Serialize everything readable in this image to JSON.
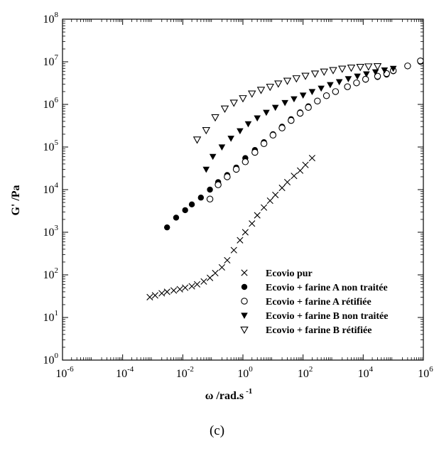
{
  "panel_label": "(c)",
  "chart_data": {
    "type": "scatter",
    "title": "",
    "xlabel": "ω /rad.s",
    "xlabel_sup": "-1",
    "ylabel": "G' /Pa",
    "xscale": "log",
    "yscale": "log",
    "xlim": [
      1e-06,
      1000000.0
    ],
    "ylim": [
      1,
      100000000.0
    ],
    "x_ticks": [
      {
        "base": "10",
        "exp": "-6",
        "value": 1e-06
      },
      {
        "base": "10",
        "exp": "-4",
        "value": 0.0001
      },
      {
        "base": "10",
        "exp": "-2",
        "value": 0.01
      },
      {
        "base": "10",
        "exp": "0",
        "value": 1
      },
      {
        "base": "10",
        "exp": "2",
        "value": 100.0
      },
      {
        "base": "10",
        "exp": "4",
        "value": 10000.0
      },
      {
        "base": "10",
        "exp": "6",
        "value": 1000000.0
      }
    ],
    "y_ticks": [
      {
        "base": "10",
        "exp": "0",
        "value": 1
      },
      {
        "base": "10",
        "exp": "1",
        "value": 10.0
      },
      {
        "base": "10",
        "exp": "2",
        "value": 100.0
      },
      {
        "base": "10",
        "exp": "3",
        "value": 1000.0
      },
      {
        "base": "10",
        "exp": "4",
        "value": 10000.0
      },
      {
        "base": "10",
        "exp": "5",
        "value": 100000.0
      },
      {
        "base": "10",
        "exp": "6",
        "value": 1000000.0
      },
      {
        "base": "10",
        "exp": "7",
        "value": 10000000.0
      },
      {
        "base": "10",
        "exp": "8",
        "value": 100000000.0
      }
    ],
    "grid": false,
    "legend_position": "bottom-right",
    "series": [
      {
        "name": "Ecovio pur",
        "marker": "x",
        "x": [
          0.0008,
          0.0012,
          0.002,
          0.003,
          0.005,
          0.008,
          0.012,
          0.02,
          0.03,
          0.05,
          0.08,
          0.12,
          0.2,
          0.3,
          0.5,
          0.8,
          1.2,
          2,
          3,
          5,
          8,
          12,
          20,
          30,
          50,
          80,
          120,
          200
        ],
        "y": [
          30,
          33,
          37,
          40,
          43,
          46,
          50,
          54,
          60,
          70,
          85,
          110,
          150,
          220,
          380,
          650,
          1000,
          1600,
          2500,
          3800,
          5500,
          7500,
          11000,
          15000,
          21000,
          28000,
          38000,
          55000
        ]
      },
      {
        "name": "Ecovio + farine A non traitée",
        "marker": "filled-circle",
        "x": [
          0.003,
          0.006,
          0.012,
          0.02,
          0.04,
          0.08,
          0.15,
          0.3,
          0.6,
          1.2,
          2.5,
          5,
          10,
          20,
          40,
          80,
          150,
          300,
          600,
          1200,
          3000,
          6000,
          12000,
          30000,
          60000,
          100000,
          300000,
          800000
        ],
        "y": [
          1300,
          2200,
          3300,
          4500,
          6500,
          10000,
          15000,
          22000,
          33000,
          55000,
          85000,
          130000,
          200000,
          300000,
          450000,
          650000,
          900000,
          1200000,
          1600000,
          2000000,
          2600000,
          3200000,
          3800000,
          4400000,
          5000000,
          6000000,
          8000000,
          10000000
        ]
      },
      {
        "name": "Ecovio + farine A rétifiée",
        "marker": "open-circle",
        "x": [
          0.08,
          0.15,
          0.3,
          0.6,
          1.2,
          2.5,
          5,
          10,
          20,
          40,
          80,
          150,
          300,
          600,
          1200,
          3000,
          6000,
          12000,
          30000,
          60000,
          100000,
          300000,
          800000
        ],
        "y": [
          6000,
          13000,
          20000,
          30000,
          45000,
          75000,
          120000,
          190000,
          280000,
          420000,
          620000,
          850000,
          1200000,
          1600000,
          2000000,
          2600000,
          3200000,
          3900000,
          4600000,
          5300000,
          6200000,
          8000000,
          10500000
        ]
      },
      {
        "name": "Ecovio + farine B non traitée",
        "marker": "filled-triangle-down",
        "x": [
          0.06,
          0.1,
          0.2,
          0.4,
          0.8,
          1.5,
          3,
          6,
          12,
          25,
          50,
          100,
          200,
          400,
          800,
          1600,
          3200,
          6400,
          12800,
          25600,
          51200,
          100000
        ],
        "y": [
          30000,
          60000,
          100000,
          160000,
          240000,
          350000,
          480000,
          650000,
          850000,
          1100000,
          1350000,
          1650000,
          2000000,
          2400000,
          2900000,
          3400000,
          4000000,
          4600000,
          5200000,
          5800000,
          6400000,
          7000000
        ]
      },
      {
        "name": "Ecovio + farine B rétifiée",
        "marker": "open-triangle-down",
        "x": [
          0.03,
          0.06,
          0.12,
          0.25,
          0.5,
          1,
          2,
          4,
          8,
          15,
          30,
          60,
          120,
          250,
          500,
          1000,
          2000,
          4000,
          8000,
          15000,
          30000
        ],
        "y": [
          150000,
          250000,
          500000,
          800000,
          1100000,
          1400000,
          1800000,
          2200000,
          2600000,
          3100000,
          3600000,
          4100000,
          4700000,
          5300000,
          5900000,
          6400000,
          6900000,
          7300000,
          7600000,
          7800000,
          7900000
        ]
      }
    ]
  }
}
